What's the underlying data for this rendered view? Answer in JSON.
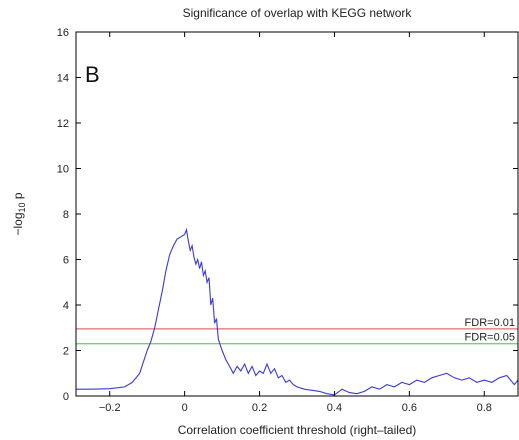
{
  "chart_data": {
    "type": "line",
    "title": "Significance of overlap with KEGG network",
    "panel_label": "B",
    "xlabel": "Correlation coefficient threshold (right–tailed)",
    "ylabel_main": "−log",
    "ylabel_sub": "10",
    "ylabel_end": " p",
    "xlim": [
      -0.29,
      0.89
    ],
    "ylim": [
      0,
      16
    ],
    "xticks": [
      -0.2,
      0,
      0.2,
      0.4,
      0.6,
      0.8
    ],
    "xtick_labels": [
      "−0.2",
      "0",
      "0.2",
      "0.4",
      "0.6",
      "0.8"
    ],
    "yticks": [
      0,
      2,
      4,
      6,
      8,
      10,
      12,
      14,
      16
    ],
    "ytick_labels": [
      "0",
      "2",
      "4",
      "6",
      "8",
      "10",
      "12",
      "14",
      "16"
    ],
    "grid": false,
    "line_color": "#3a3ad8",
    "reference_lines": [
      {
        "label": "FDR=0.01",
        "y": 2.95,
        "color": "#e07070"
      },
      {
        "label": "FDR=0.05",
        "y": 2.3,
        "color": "#66dd66"
      }
    ],
    "series": [
      {
        "x": [
          -0.29,
          -0.25,
          -0.2,
          -0.16,
          -0.14,
          -0.12,
          -0.11,
          -0.1,
          -0.09,
          -0.08,
          -0.07,
          -0.06,
          -0.05,
          -0.04,
          -0.03,
          -0.02,
          -0.01,
          0.0,
          0.005,
          0.01,
          0.015,
          0.02,
          0.025,
          0.03,
          0.035,
          0.04,
          0.045,
          0.05,
          0.055,
          0.06,
          0.065,
          0.07,
          0.075,
          0.08,
          0.085,
          0.09,
          0.1,
          0.11,
          0.12,
          0.13,
          0.14,
          0.15,
          0.16,
          0.17,
          0.18,
          0.19,
          0.2,
          0.21,
          0.22,
          0.23,
          0.24,
          0.25,
          0.26,
          0.27,
          0.28,
          0.29,
          0.3,
          0.32,
          0.34,
          0.36,
          0.38,
          0.4,
          0.42,
          0.44,
          0.46,
          0.48,
          0.5,
          0.52,
          0.54,
          0.56,
          0.58,
          0.6,
          0.62,
          0.64,
          0.66,
          0.68,
          0.7,
          0.72,
          0.74,
          0.76,
          0.78,
          0.8,
          0.82,
          0.84,
          0.86,
          0.88,
          0.89
        ],
        "y": [
          0.3,
          0.3,
          0.32,
          0.4,
          0.6,
          1.0,
          1.5,
          2.0,
          2.4,
          3.0,
          3.8,
          4.6,
          5.5,
          6.2,
          6.6,
          6.9,
          7.0,
          7.1,
          7.3,
          6.8,
          6.4,
          6.6,
          6.1,
          5.8,
          6.0,
          5.6,
          5.9,
          5.3,
          5.5,
          5.0,
          5.2,
          4.0,
          4.3,
          3.2,
          3.4,
          2.5,
          2.0,
          1.6,
          1.3,
          1.0,
          1.3,
          1.1,
          1.4,
          1.0,
          1.3,
          0.9,
          1.1,
          1.0,
          1.4,
          1.0,
          1.2,
          0.8,
          0.9,
          0.6,
          0.7,
          0.5,
          0.4,
          0.3,
          0.25,
          0.2,
          0.1,
          0.05,
          0.3,
          0.15,
          0.1,
          0.2,
          0.4,
          0.3,
          0.5,
          0.4,
          0.6,
          0.5,
          0.7,
          0.6,
          0.8,
          0.9,
          1.0,
          0.8,
          0.7,
          0.8,
          0.6,
          0.7,
          0.6,
          0.8,
          0.9,
          0.5,
          0.7
        ]
      }
    ]
  }
}
